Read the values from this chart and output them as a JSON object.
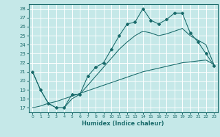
{
  "xlabel": "Humidex (Indice chaleur)",
  "ylabel": "",
  "bg_color": "#c5e8e8",
  "grid_color": "#ffffff",
  "line_color": "#1a6b6b",
  "xlim": [
    -0.5,
    23.5
  ],
  "ylim": [
    16.5,
    28.5
  ],
  "xticks": [
    0,
    1,
    2,
    3,
    4,
    5,
    6,
    7,
    8,
    9,
    10,
    11,
    12,
    13,
    14,
    15,
    16,
    17,
    18,
    19,
    20,
    21,
    22,
    23
  ],
  "yticks": [
    17,
    18,
    19,
    20,
    21,
    22,
    23,
    24,
    25,
    26,
    27,
    28
  ],
  "line1_x": [
    0,
    1,
    2,
    3,
    4,
    5,
    6,
    7,
    8,
    9,
    10,
    11,
    12,
    13,
    14,
    15,
    16,
    17,
    18,
    19,
    20,
    21,
    22,
    23
  ],
  "line1_y": [
    21.0,
    19.0,
    17.5,
    17.0,
    17.0,
    18.5,
    18.5,
    20.5,
    21.5,
    22.0,
    23.5,
    25.0,
    26.3,
    26.5,
    28.0,
    26.7,
    26.3,
    26.8,
    27.5,
    27.5,
    25.3,
    24.3,
    23.0,
    21.7
  ],
  "line2_x": [
    0,
    1,
    2,
    3,
    4,
    5,
    6,
    7,
    8,
    9,
    10,
    11,
    12,
    13,
    14,
    15,
    16,
    17,
    18,
    19,
    20,
    21,
    22,
    23
  ],
  "line2_y": [
    21.0,
    19.0,
    17.5,
    17.0,
    17.0,
    18.0,
    18.5,
    19.5,
    20.5,
    21.5,
    22.5,
    23.5,
    24.3,
    25.0,
    25.5,
    25.3,
    25.0,
    25.2,
    25.5,
    25.8,
    25.0,
    24.5,
    24.0,
    21.8
  ],
  "line3_x": [
    0,
    1,
    2,
    3,
    4,
    5,
    6,
    7,
    8,
    9,
    10,
    11,
    12,
    13,
    14,
    15,
    16,
    17,
    18,
    19,
    20,
    21,
    22,
    23
  ],
  "line3_y": [
    17.0,
    17.2,
    17.5,
    17.7,
    18.0,
    18.3,
    18.6,
    18.9,
    19.2,
    19.5,
    19.8,
    20.1,
    20.4,
    20.7,
    21.0,
    21.2,
    21.4,
    21.6,
    21.8,
    22.0,
    22.1,
    22.2,
    22.3,
    21.8
  ],
  "marker": "D",
  "marker_size": 2
}
